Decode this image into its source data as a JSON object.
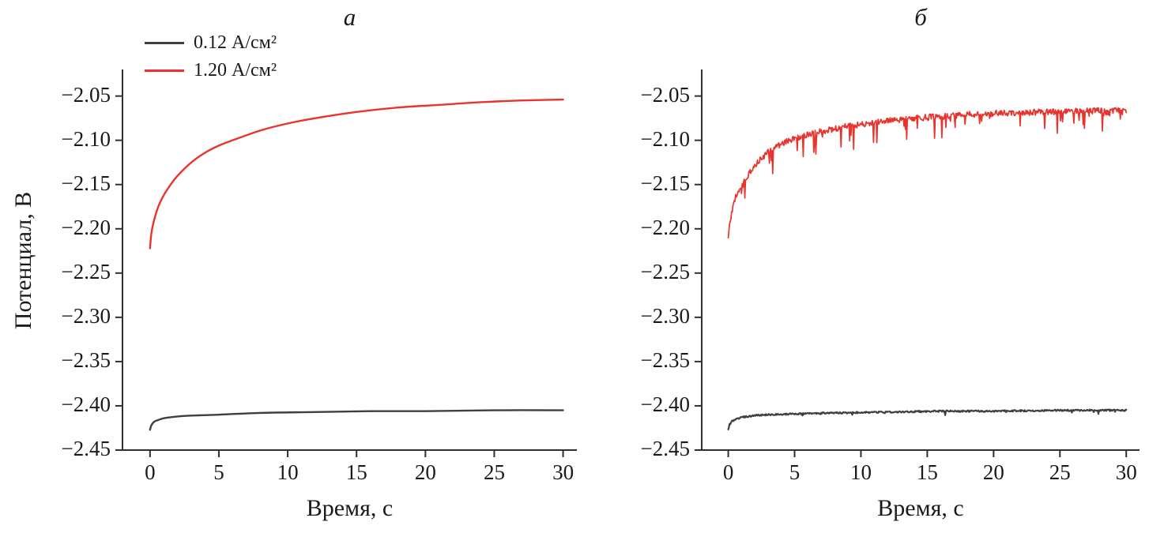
{
  "figure": {
    "background": "#ffffff",
    "axis_color": "#2f2f2f"
  },
  "chart_data": [
    {
      "type": "line",
      "panel_label": "а",
      "xlabel": "Время, с",
      "ylabel": "Потенциал, В",
      "xlim": [
        -2,
        31
      ],
      "ylim": [
        -2.45,
        -2.02
      ],
      "xticks": [
        0,
        5,
        10,
        15,
        20,
        25,
        30
      ],
      "yticks": [
        -2.45,
        -2.4,
        -2.35,
        -2.3,
        -2.25,
        -2.2,
        -2.15,
        -2.1,
        -2.05
      ],
      "grid": false,
      "legend": {
        "visible": true,
        "position": "top-left"
      },
      "series": [
        {
          "name": "0.12 А/см²",
          "color": "#3f3f3f",
          "line_width": 2.4,
          "noise": null,
          "x": [
            0,
            0.1,
            0.3,
            0.6,
            1,
            2,
            3,
            5,
            8,
            12,
            16,
            20,
            25,
            30
          ],
          "y": [
            -2.427,
            -2.422,
            -2.418,
            -2.416,
            -2.414,
            -2.412,
            -2.411,
            -2.41,
            -2.408,
            -2.407,
            -2.406,
            -2.406,
            -2.405,
            -2.405
          ]
        },
        {
          "name": "1.20 А/см²",
          "color": "#e8342d",
          "line_width": 2.4,
          "noise": null,
          "x": [
            0,
            0.1,
            0.3,
            0.6,
            1,
            1.5,
            2,
            3,
            4,
            5,
            6,
            8,
            10,
            12,
            15,
            18,
            21,
            24,
            27,
            30
          ],
          "y": [
            -2.222,
            -2.205,
            -2.19,
            -2.175,
            -2.162,
            -2.15,
            -2.14,
            -2.125,
            -2.114,
            -2.106,
            -2.1,
            -2.089,
            -2.081,
            -2.075,
            -2.068,
            -2.063,
            -2.06,
            -2.057,
            -2.055,
            -2.054
          ]
        }
      ]
    },
    {
      "type": "line",
      "panel_label": "б",
      "xlabel": "Время, с",
      "ylabel": "",
      "xlim": [
        -2,
        31
      ],
      "ylim": [
        -2.45,
        -2.02
      ],
      "xticks": [
        0,
        5,
        10,
        15,
        20,
        25,
        30
      ],
      "yticks": [
        -2.45,
        -2.4,
        -2.35,
        -2.3,
        -2.25,
        -2.2,
        -2.15,
        -2.1,
        -2.05
      ],
      "grid": false,
      "legend": {
        "visible": false,
        "position": null
      },
      "series": [
        {
          "name": "0.12 А/см²",
          "color": "#3f3f3f",
          "line_width": 2.2,
          "noise": {
            "band": 0.0018,
            "spike_amplitude": 0.004,
            "spike_probability": 0.05
          },
          "x": [
            0,
            0.1,
            0.3,
            0.6,
            1,
            2,
            3,
            5,
            8,
            12,
            16,
            20,
            25,
            30
          ],
          "y": [
            -2.426,
            -2.421,
            -2.417,
            -2.415,
            -2.413,
            -2.411,
            -2.41,
            -2.409,
            -2.408,
            -2.407,
            -2.406,
            -2.406,
            -2.405,
            -2.405
          ]
        },
        {
          "name": "1.20 А/см²",
          "color": "#e8342d",
          "line_width": 1.7,
          "noise": {
            "band": 0.007,
            "spike_amplitude": 0.03,
            "spike_probability": 0.12
          },
          "x": [
            0,
            0.1,
            0.3,
            0.6,
            1,
            1.5,
            2,
            3,
            4,
            5,
            7,
            9,
            12,
            15,
            18,
            21,
            24,
            27,
            30
          ],
          "y": [
            -2.213,
            -2.195,
            -2.178,
            -2.162,
            -2.15,
            -2.138,
            -2.128,
            -2.113,
            -2.104,
            -2.098,
            -2.09,
            -2.084,
            -2.078,
            -2.074,
            -2.071,
            -2.069,
            -2.068,
            -2.067,
            -2.066
          ]
        }
      ]
    }
  ]
}
